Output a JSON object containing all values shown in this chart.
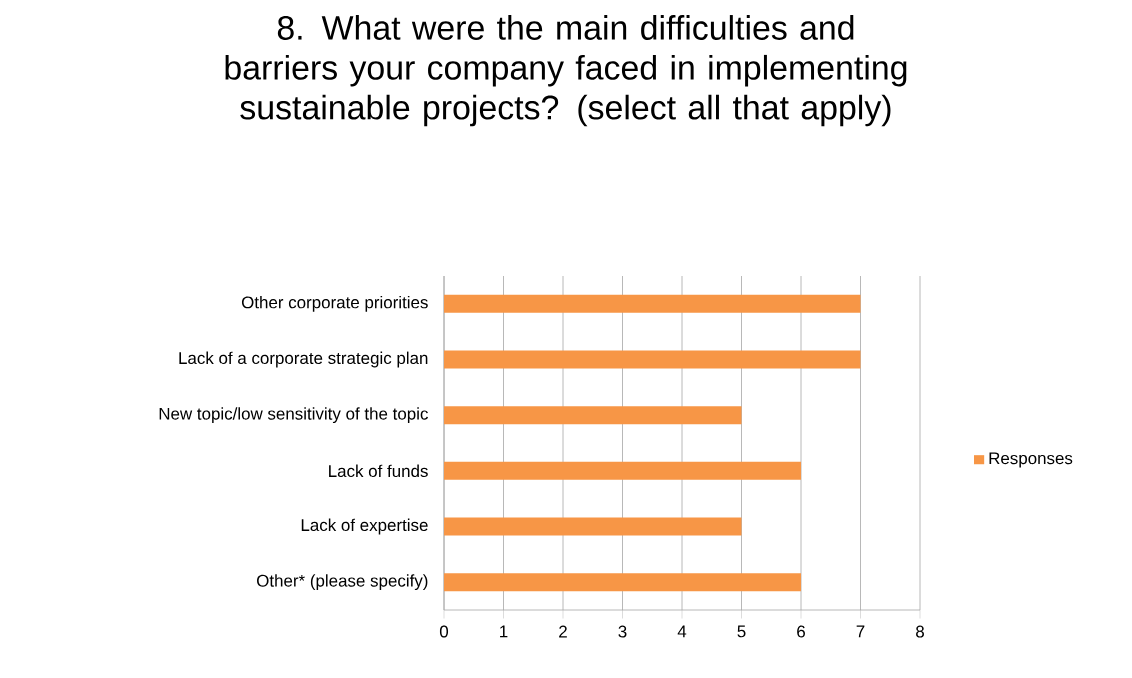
{
  "chart_data": {
    "type": "bar",
    "orientation": "horizontal",
    "title": "8. What were the main difficulties and barriers your company faced in implementing sustainable projects? (select all that apply)",
    "categories": [
      "Other corporate priorities",
      "Lack of a corporate strategic plan",
      "New topic/low sensitivity of the topic",
      "Lack of funds",
      "Lack of expertise",
      "Other* (please specify)"
    ],
    "series": [
      {
        "name": "Responses",
        "color": "#f79646",
        "values": [
          7,
          7,
          5,
          6,
          5,
          6
        ]
      }
    ],
    "xlim": [
      0,
      8
    ],
    "xticks": [
      0,
      1,
      2,
      3,
      4,
      5,
      6,
      7,
      8
    ],
    "grid": "x",
    "legend": "right"
  }
}
